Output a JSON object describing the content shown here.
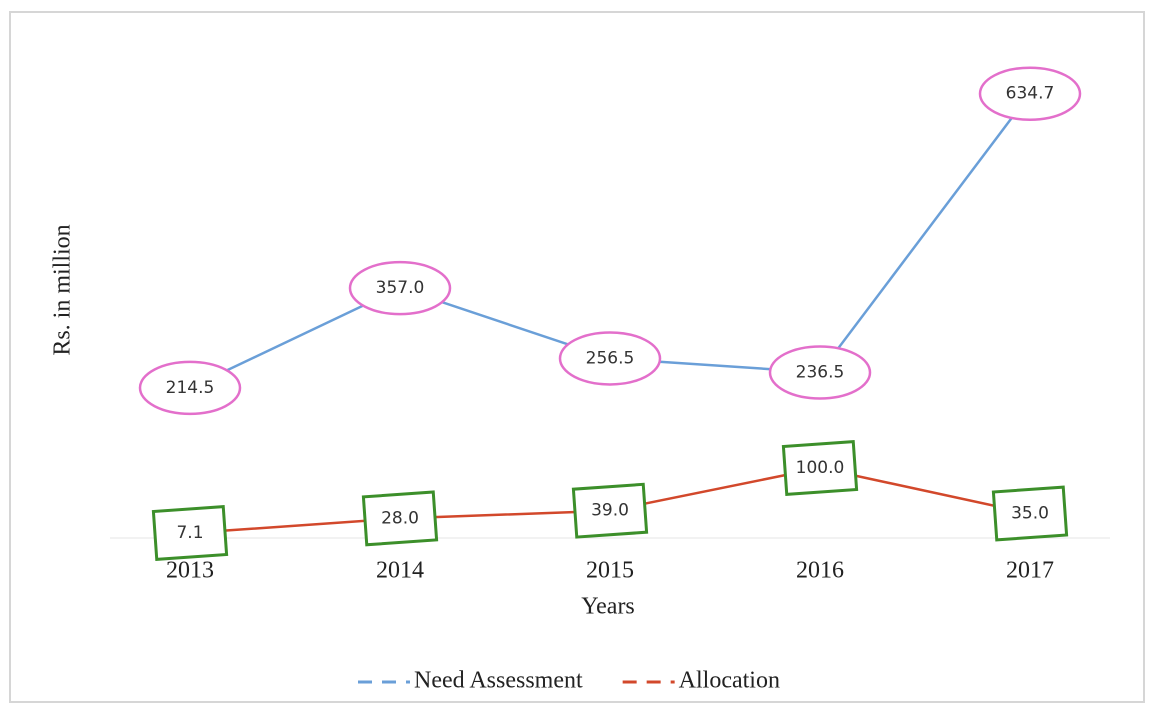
{
  "chart_data": {
    "type": "line",
    "categories": [
      "2013",
      "2014",
      "2015",
      "2016",
      "2017"
    ],
    "x_label": "Years",
    "y_label": "Rs. in million",
    "ylim": [
      0,
      700
    ],
    "series": [
      {
        "name": "Need Assessment",
        "color": "#6a9fd8",
        "marker_color": "#e36fcb",
        "values": [
          214.5,
          357.0,
          256.5,
          236.5,
          634.7
        ],
        "value_labels": [
          "214.5",
          "357.0",
          "256.5",
          "236.5",
          "634.7"
        ]
      },
      {
        "name": "Allocation",
        "color": "#d2482b",
        "marker_color": "#3c8f2a",
        "values": [
          7.1,
          28.0,
          39.0,
          100.0,
          35.0
        ],
        "value_labels": [
          "7.1",
          "28.0",
          "39.0",
          "100.0",
          "35.0"
        ]
      }
    ]
  }
}
